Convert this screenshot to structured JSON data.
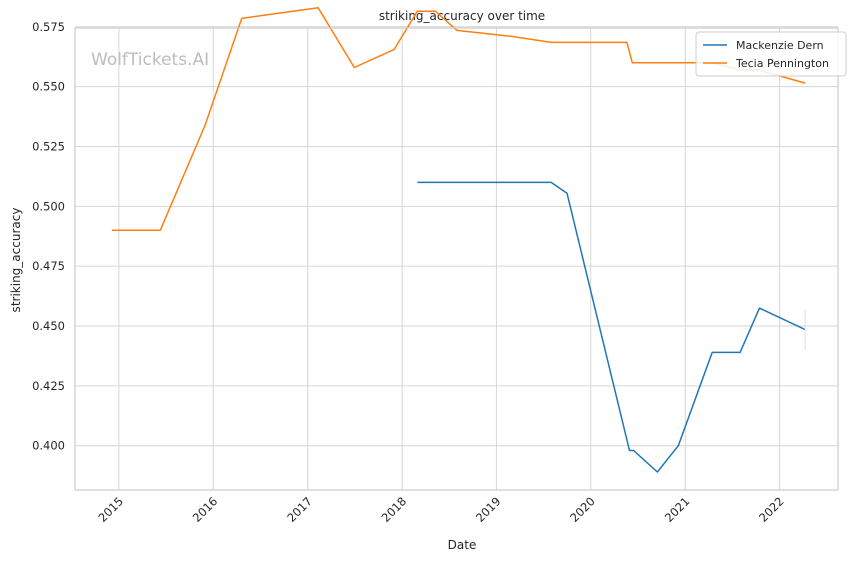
{
  "watermark": "WolfTickets.AI",
  "chart_data": {
    "type": "line",
    "title": "striking_accuracy over time",
    "xlabel": "Date",
    "ylabel": "striking_accuracy",
    "x_ticks": [
      "2015",
      "2016",
      "2017",
      "2018",
      "2019",
      "2020",
      "2021",
      "2022"
    ],
    "y_ticks": [
      "0.400",
      "0.425",
      "0.450",
      "0.475",
      "0.500",
      "0.525",
      "0.550",
      "0.575"
    ],
    "xlim": [
      "2014-07-15",
      "2022-08-15"
    ],
    "ylim": [
      0.3815,
      0.5745
    ],
    "grid": true,
    "legend_position": "top-right",
    "series": [
      {
        "name": "Mackenzie Dern",
        "color": "#1f77b4",
        "points": [
          [
            "2018-03-01",
            0.51
          ],
          [
            "2019-08-01",
            0.51
          ],
          [
            "2019-10-01",
            0.5055
          ],
          [
            "2020-05-30",
            0.398
          ],
          [
            "2020-06-15",
            0.398
          ],
          [
            "2020-09-15",
            0.389
          ],
          [
            "2020-12-05",
            0.4
          ],
          [
            "2021-04-15",
            0.439
          ],
          [
            "2021-08-01",
            0.439
          ],
          [
            "2021-10-15",
            0.4575
          ],
          [
            "2022-04-10",
            0.4485
          ]
        ]
      },
      {
        "name": "Tecia Pennington",
        "color": "#ff7f0e",
        "points": [
          [
            "2014-12-05",
            0.49
          ],
          [
            "2015-06-10",
            0.49
          ],
          [
            "2015-12-01",
            0.534
          ],
          [
            "2016-04-20",
            0.5785
          ],
          [
            "2017-02-10",
            0.583
          ],
          [
            "2017-06-30",
            0.558
          ],
          [
            "2017-12-01",
            0.5655
          ],
          [
            "2018-03-01",
            0.5815
          ],
          [
            "2018-05-10",
            0.5815
          ],
          [
            "2018-08-01",
            0.5735
          ],
          [
            "2019-03-01",
            0.571
          ],
          [
            "2019-08-01",
            0.5685
          ],
          [
            "2020-05-20",
            0.5685
          ],
          [
            "2020-06-10",
            0.56
          ],
          [
            "2021-04-15",
            0.56
          ],
          [
            "2021-08-01",
            0.557
          ],
          [
            "2021-10-10",
            0.557
          ],
          [
            "2022-04-10",
            0.5515
          ]
        ]
      }
    ]
  }
}
